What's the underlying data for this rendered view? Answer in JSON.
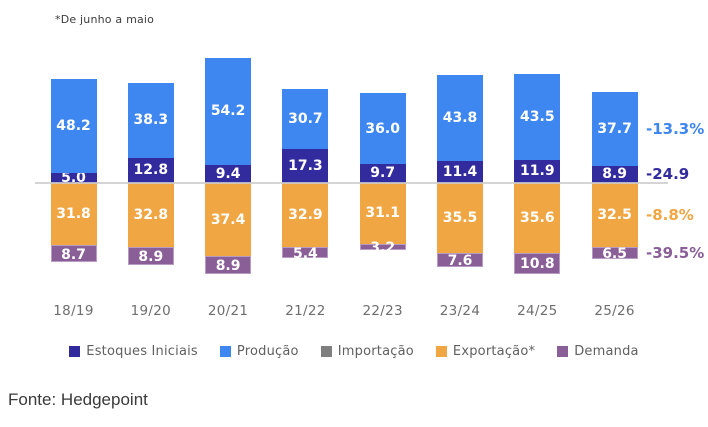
{
  "note": "*De junho a maio",
  "source": "Fonte: Hedgepoint",
  "chart_data": {
    "type": "bar",
    "stacked": true,
    "title": "",
    "xlabel": "",
    "ylabel": "",
    "grid": false,
    "legend_position": "bottom",
    "zero_line": true,
    "categories": [
      "18/19",
      "19/20",
      "20/21",
      "21/22",
      "22/23",
      "23/24",
      "24/25",
      "25/26"
    ],
    "series": [
      {
        "name": "Estoques Iniciais",
        "color": "#322B9E",
        "direction": "up",
        "values": [
          5.0,
          12.8,
          9.4,
          17.3,
          9.7,
          11.4,
          11.9,
          8.9
        ]
      },
      {
        "name": "Produção",
        "color": "#3E86F0",
        "direction": "up",
        "values": [
          48.2,
          38.3,
          54.2,
          30.7,
          36.0,
          43.8,
          43.5,
          37.7
        ]
      },
      {
        "name": "Importação",
        "color": "#7F7F7F",
        "direction": "none",
        "values": []
      },
      {
        "name": "Exportação*",
        "color": "#F0A643",
        "direction": "down",
        "values": [
          31.8,
          32.8,
          37.4,
          32.9,
          31.1,
          35.5,
          35.6,
          32.5
        ]
      },
      {
        "name": "Demanda",
        "color": "#8A5E97",
        "border_color": "#B79BC2",
        "direction": "down",
        "values": [
          8.7,
          8.9,
          8.9,
          5.4,
          3.2,
          7.6,
          10.8,
          6.5
        ]
      }
    ],
    "annotations": [
      {
        "text": "-13.3%",
        "color": "#3E86F0",
        "series": "Produção"
      },
      {
        "text": "-24.9",
        "color": "#322B9E",
        "series": "Estoques Iniciais"
      },
      {
        "text": "-8.8%",
        "color": "#F0A643",
        "series": "Exportação*"
      },
      {
        "text": "-39.5%",
        "color": "#8A5E97",
        "series": "Demanda"
      }
    ]
  }
}
